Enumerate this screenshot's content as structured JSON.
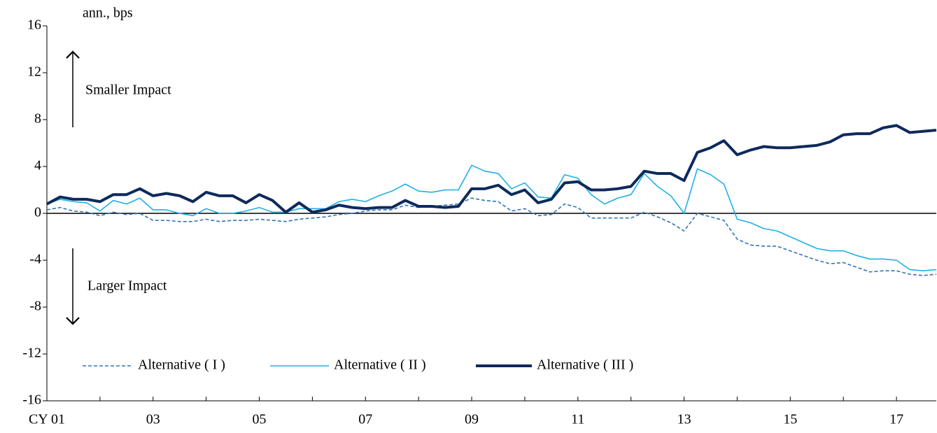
{
  "chart_data": {
    "type": "line",
    "y_label": "ann., bps",
    "annotations": [
      "Smaller Impact",
      "Larger Impact"
    ],
    "categories": [
      "CY 01",
      null,
      null,
      null,
      null,
      null,
      null,
      null,
      "03",
      null,
      null,
      null,
      null,
      null,
      null,
      null,
      "05",
      null,
      null,
      null,
      null,
      null,
      null,
      null,
      "07",
      null,
      null,
      null,
      null,
      null,
      null,
      null,
      "09",
      null,
      null,
      null,
      null,
      null,
      null,
      null,
      "11",
      null,
      null,
      null,
      null,
      null,
      null,
      null,
      "13",
      null,
      null,
      null,
      null,
      null,
      null,
      null,
      "15",
      null,
      null,
      null,
      null,
      null,
      null,
      null,
      "17",
      null,
      null,
      null
    ],
    "ylim": [
      -16,
      16
    ],
    "yticks": [
      16,
      12,
      8,
      4,
      0,
      -4,
      -8,
      -12,
      -16
    ],
    "series": [
      {
        "name": "Alternative ( I )",
        "color": "#2e75b6",
        "style": "dashed",
        "width": 1.6,
        "values": [
          0.3,
          0.5,
          0.2,
          0.1,
          -0.2,
          0.1,
          -0.1,
          0.0,
          -0.6,
          -0.6,
          -0.7,
          -0.7,
          -0.5,
          -0.7,
          -0.6,
          -0.6,
          -0.5,
          -0.6,
          -0.7,
          -0.5,
          -0.4,
          -0.3,
          -0.1,
          0.0,
          0.2,
          0.3,
          0.3,
          0.7,
          0.5,
          0.6,
          0.7,
          0.8,
          1.3,
          1.1,
          1.0,
          0.2,
          0.4,
          -0.2,
          -0.1,
          0.8,
          0.5,
          -0.4,
          -0.4,
          -0.4,
          -0.4,
          0.1,
          -0.3,
          -0.8,
          -1.5,
          0.0,
          -0.3,
          -0.6,
          -2.2,
          -2.7,
          -2.8,
          -2.8,
          -3.2,
          -3.6,
          -4.0,
          -4.3,
          -4.2,
          -4.6,
          -5.0,
          -4.9,
          -4.9,
          -5.2,
          -5.3,
          -5.2
        ]
      },
      {
        "name": "Alternative ( II )",
        "color": "#1fb0e6",
        "style": "solid",
        "width": 1.6,
        "values": [
          0.8,
          1.2,
          1.0,
          0.9,
          0.2,
          1.1,
          0.8,
          1.3,
          0.3,
          0.3,
          0.0,
          -0.2,
          0.4,
          0.0,
          0.0,
          0.2,
          0.5,
          0.1,
          0.1,
          0.4,
          0.4,
          0.4,
          1.0,
          1.2,
          1.0,
          1.5,
          1.9,
          2.5,
          1.9,
          1.8,
          2.0,
          2.0,
          4.1,
          3.6,
          3.4,
          2.1,
          2.6,
          1.4,
          1.3,
          3.3,
          3.0,
          1.6,
          0.8,
          1.3,
          1.6,
          3.4,
          2.3,
          1.5,
          0.0,
          3.8,
          3.3,
          2.5,
          -0.5,
          -0.8,
          -1.3,
          -1.5,
          -2.0,
          -2.5,
          -3.0,
          -3.2,
          -3.2,
          -3.6,
          -3.9,
          -3.9,
          -4.0,
          -4.8,
          -4.9,
          -4.8
        ]
      },
      {
        "name": "Alternative ( III )",
        "color": "#0d2a5c",
        "style": "solid",
        "width": 4,
        "values": [
          0.8,
          1.4,
          1.2,
          1.2,
          1.0,
          1.6,
          1.6,
          2.1,
          1.5,
          1.7,
          1.5,
          1.0,
          1.8,
          1.5,
          1.5,
          0.9,
          1.6,
          1.1,
          0.1,
          0.9,
          0.1,
          0.3,
          0.7,
          0.5,
          0.4,
          0.5,
          0.5,
          1.1,
          0.6,
          0.6,
          0.5,
          0.6,
          2.1,
          2.1,
          2.4,
          1.6,
          2.0,
          0.9,
          1.2,
          2.6,
          2.7,
          2.0,
          2.0,
          2.1,
          2.3,
          3.6,
          3.4,
          3.4,
          2.8,
          5.2,
          5.6,
          6.2,
          5.0,
          5.4,
          5.7,
          5.6,
          5.6,
          5.7,
          5.8,
          6.1,
          6.7,
          6.8,
          6.8,
          7.3,
          7.5,
          6.9,
          7.0,
          7.1
        ]
      }
    ]
  }
}
